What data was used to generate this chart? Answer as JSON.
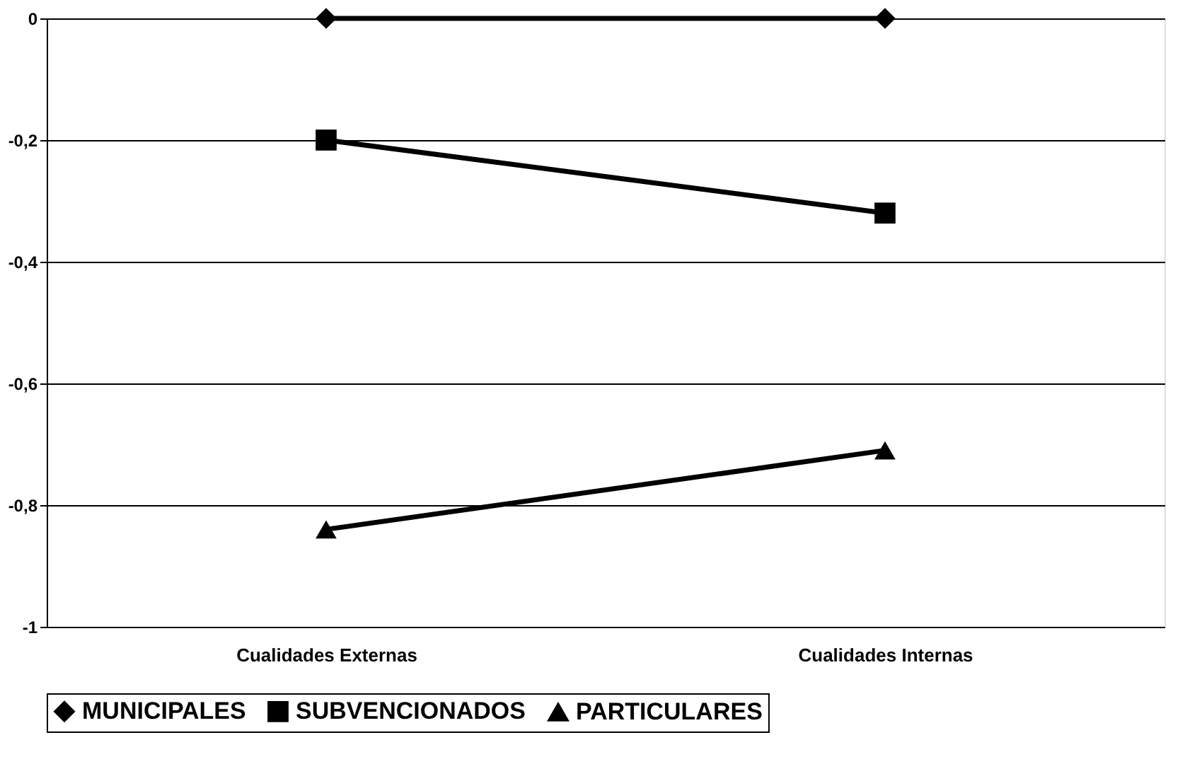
{
  "chart_data": {
    "type": "line",
    "categories": [
      "Cualidades Externas",
      "Cualidades Internas"
    ],
    "series": [
      {
        "name": "MUNICIPALES",
        "color": "#000000",
        "marker": "diamond",
        "values": [
          0,
          0
        ]
      },
      {
        "name": "SUBVENCIONADOS",
        "color": "#000000",
        "marker": "square",
        "values": [
          -0.2,
          -0.32
        ]
      },
      {
        "name": "PARTICULARES",
        "color": "#000000",
        "marker": "triangle",
        "values": [
          -0.84,
          -0.71
        ]
      }
    ],
    "ylim": [
      -1,
      0
    ],
    "yticks": [
      {
        "value": -1,
        "label": "-1"
      },
      {
        "value": -0.8,
        "label": "-0,8"
      },
      {
        "value": -0.6,
        "label": "-0,6"
      },
      {
        "value": -0.4,
        "label": "-0,4"
      },
      {
        "value": -0.2,
        "label": "-0,2"
      },
      {
        "value": 0,
        "label": "0"
      }
    ],
    "grid": "y",
    "legend": "bottom",
    "line_style": "solid"
  }
}
